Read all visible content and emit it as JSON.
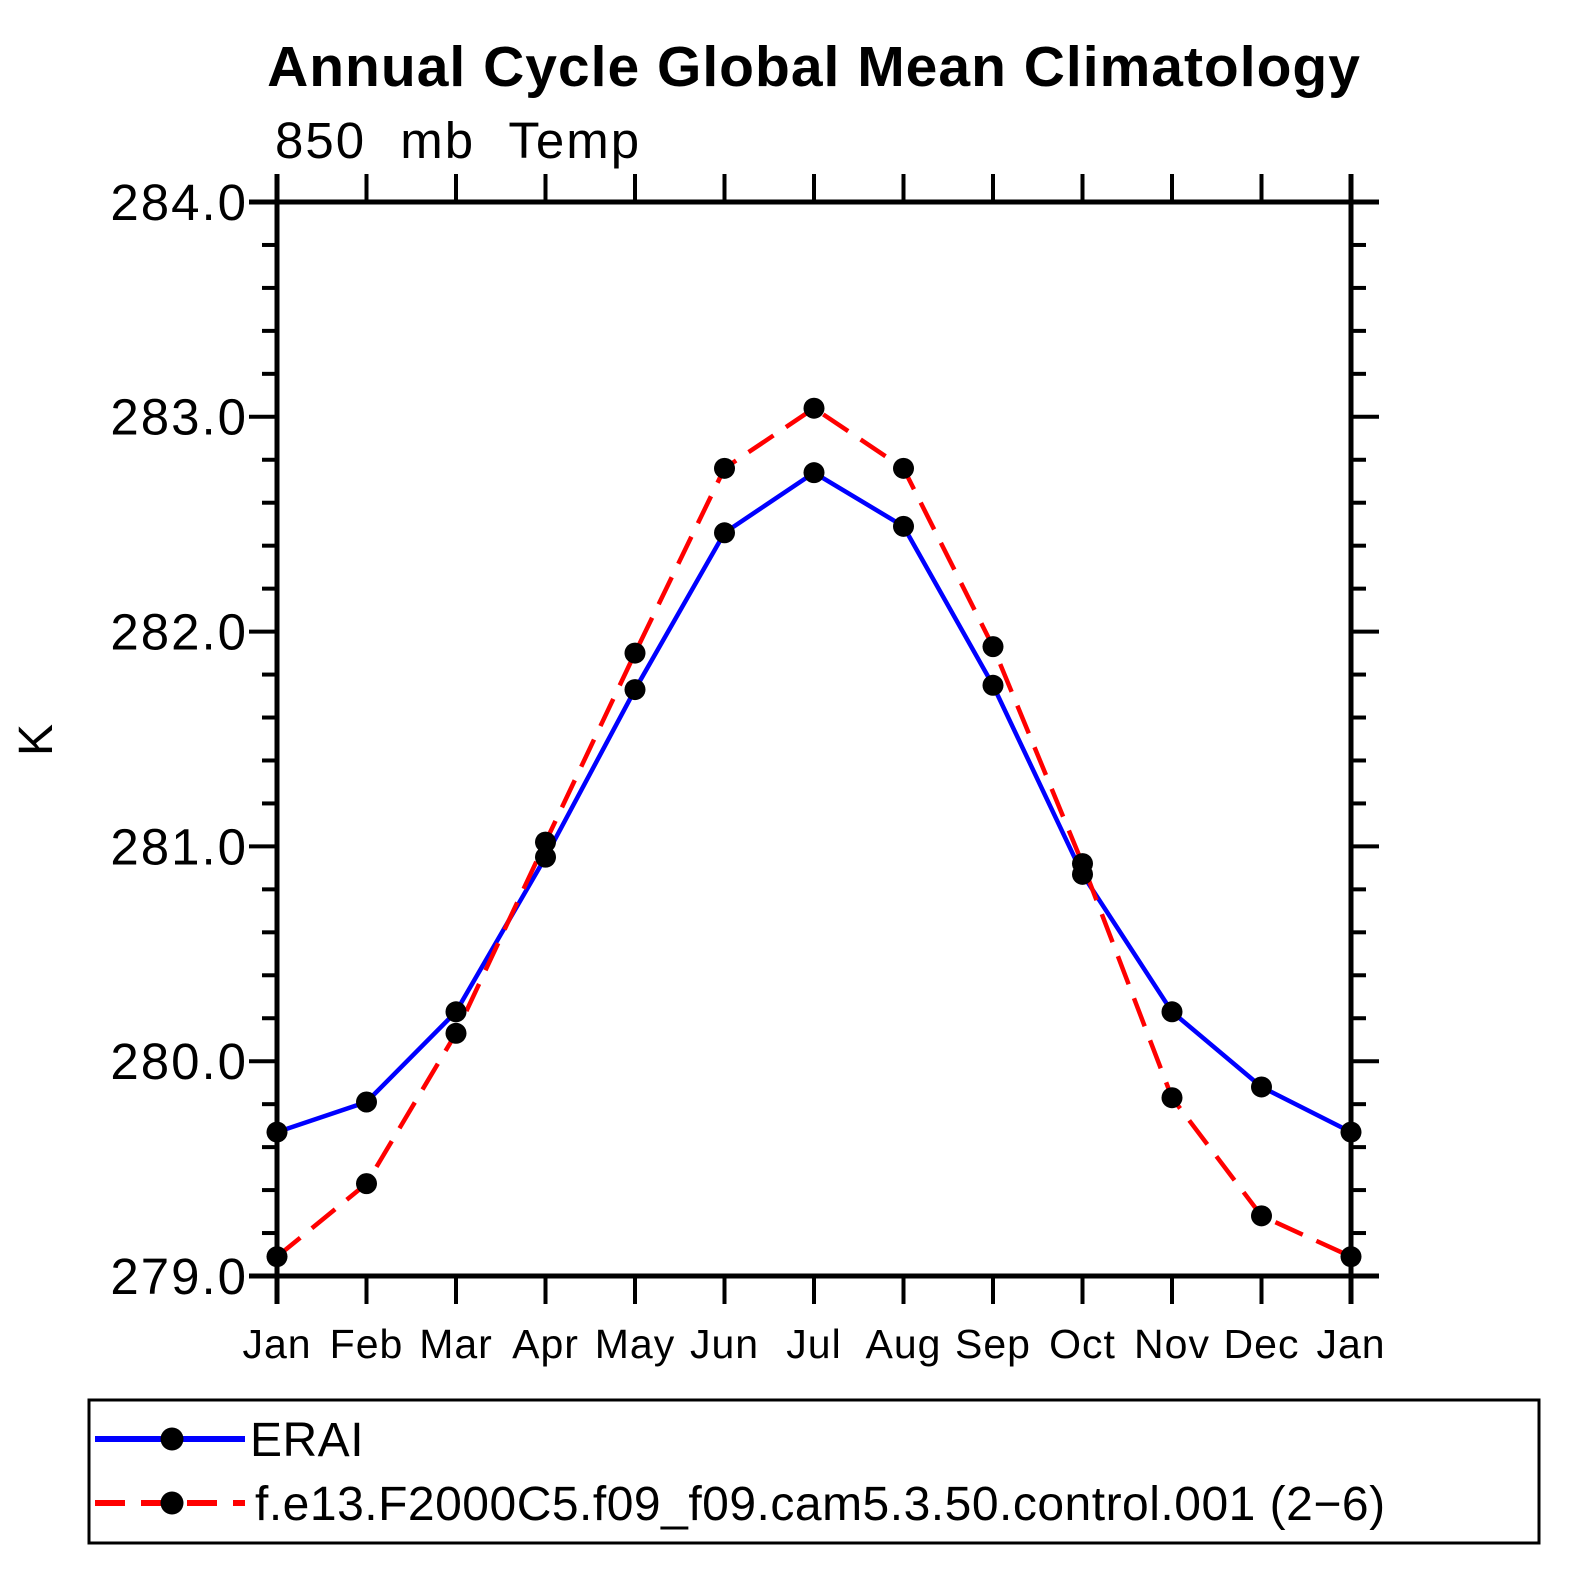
{
  "chart_data": {
    "type": "line",
    "title": "Annual Cycle Global Mean Climatology",
    "subtitle": "850 mb Temp",
    "ylabel": "K",
    "xlabel": "",
    "categories": [
      "Jan",
      "Feb",
      "Mar",
      "Apr",
      "May",
      "Jun",
      "Jul",
      "Aug",
      "Sep",
      "Oct",
      "Nov",
      "Dec",
      "Jan"
    ],
    "ylim": [
      279.0,
      284.0
    ],
    "ytick_interval": 1.0,
    "yminor_interval": 0.2,
    "ytick_labels": [
      "279.0",
      "280.0",
      "281.0",
      "282.0",
      "283.0",
      "284.0"
    ],
    "grid": false,
    "legend_position": "bottom",
    "axis_color": "#000000",
    "marker": {
      "shape": "circle",
      "color": "#000000"
    },
    "series": [
      {
        "name": "ERAI",
        "color": "#0000ff",
        "line_style": "solid",
        "values": [
          279.67,
          279.81,
          280.23,
          280.95,
          281.73,
          282.46,
          282.74,
          282.49,
          281.75,
          280.87,
          280.23,
          279.88,
          279.67
        ]
      },
      {
        "name": "f.e13.F2000C5.f09_f09.cam5.3.50.control.001 (2−6)",
        "color": "#ff0000",
        "line_style": "dashed",
        "values": [
          279.09,
          279.43,
          280.13,
          281.02,
          281.9,
          282.76,
          283.04,
          282.76,
          281.93,
          280.92,
          279.83,
          279.28,
          279.09
        ]
      }
    ]
  }
}
